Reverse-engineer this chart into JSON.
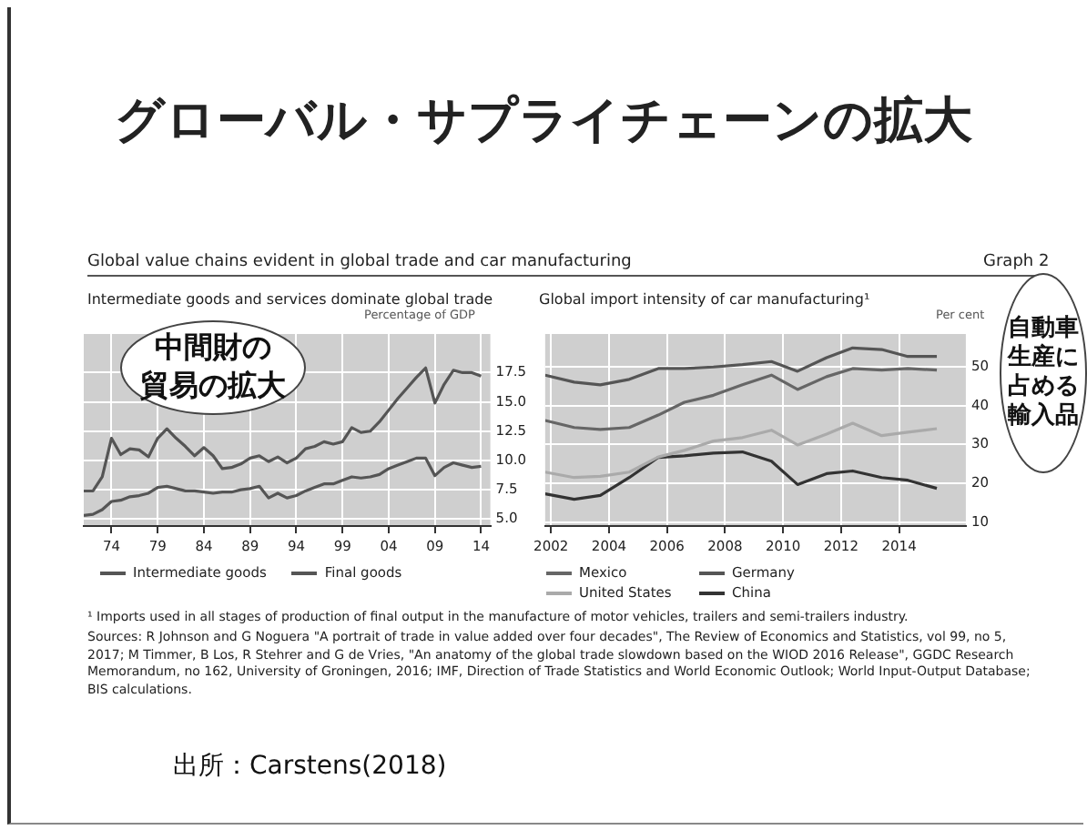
{
  "chart_data": [
    {
      "type": "line",
      "title": "Intermediate goods and services dominate global trade",
      "ylabel": "Percentage of GDP",
      "annotations": [
        "グローバル・サプライチェーンの拡大",
        "Global value chains evident in global trade and car manufacturing",
        "Graph 2",
        "中間財の",
        "貿易の拡大"
      ],
      "x": [
        1971,
        1972,
        1973,
        1974,
        1975,
        1976,
        1977,
        1978,
        1979,
        1980,
        1981,
        1982,
        1983,
        1984,
        1985,
        1986,
        1987,
        1988,
        1989,
        1990,
        1991,
        1992,
        1993,
        1994,
        1995,
        1996,
        1997,
        1998,
        1999,
        2000,
        2001,
        2002,
        2003,
        2004,
        2005,
        2006,
        2007,
        2008,
        2009,
        2010,
        2011,
        2012,
        2013,
        2014
      ],
      "series": [
        {
          "name": "Intermediate goods",
          "color": "#555555",
          "values": [
            7.4,
            7.4,
            8.6,
            11.9,
            10.5,
            11.0,
            10.9,
            10.3,
            11.9,
            12.7,
            11.9,
            11.2,
            10.4,
            11.1,
            10.4,
            9.3,
            9.4,
            9.7,
            10.2,
            10.4,
            9.9,
            10.3,
            9.8,
            10.2,
            11.0,
            11.2,
            11.6,
            11.4,
            11.6,
            12.8,
            12.4,
            12.5,
            13.3,
            14.3,
            15.3,
            16.2,
            17.1,
            17.9,
            14.9,
            16.5,
            17.7,
            17.5,
            17.5,
            17.2
          ]
        },
        {
          "name": "Final goods",
          "color": "#555555",
          "values": [
            5.3,
            5.4,
            5.8,
            6.5,
            6.6,
            6.9,
            7.0,
            7.2,
            7.7,
            7.8,
            7.6,
            7.4,
            7.4,
            7.3,
            7.2,
            7.3,
            7.3,
            7.5,
            7.6,
            7.8,
            6.8,
            7.2,
            6.8,
            7.0,
            7.4,
            7.7,
            8.0,
            8.0,
            8.3,
            8.6,
            8.5,
            8.6,
            8.8,
            9.3,
            9.6,
            9.9,
            10.2,
            10.2,
            8.7,
            9.4,
            9.8,
            9.6,
            9.4,
            9.5
          ]
        }
      ],
      "xlim": [
        1971,
        2015
      ],
      "xticks": [
        {
          "value": 1974,
          "label": "74"
        },
        {
          "value": 1979,
          "label": "79"
        },
        {
          "value": 1984,
          "label": "84"
        },
        {
          "value": 1989,
          "label": "89"
        },
        {
          "value": 1994,
          "label": "94"
        },
        {
          "value": 1999,
          "label": "99"
        },
        {
          "value": 2004,
          "label": "04"
        },
        {
          "value": 2009,
          "label": "09"
        },
        {
          "value": 2014,
          "label": "14"
        }
      ],
      "ylim": [
        4.4,
        20.8
      ],
      "yticks": [
        {
          "value": 5,
          "label": "5.0"
        },
        7.5,
        {
          "value": 10,
          "label": "10.0"
        },
        12.5,
        {
          "value": 15,
          "label": "15.0"
        },
        17.5
      ],
      "grid": true,
      "legend": "bottom",
      "marker": "none",
      "line_style": "solid"
    },
    {
      "type": "line",
      "title": "Global import intensity of car manufacturing¹",
      "ylabel": "Per cent",
      "annotations": [
        "自動車生産に占める輸入品",
        "¹ Imports used in all stages of production of final output in the manufacture of motor vehicles, trailers and semi-trailers industry.",
        "Sources: R Johnson and G Noguera \"A portrait of trade in value added over four decades\", The Review of Economics and Statistics, vol 99, no 5, 2017; M Timmer, B Los, R Stehrer and G de Vries, \"An anatomy of the global trade slowdown based on the WIOD 2016 Release\", GGDC Research Memorandum, no 162, University of Groningen, 2016; IMF, Direction of Trade Statistics and World Economic Outlook; World Input-Output Database; BIS calculations.",
        "出所：Carstens(2018)"
      ],
      "x": [
        2001.8,
        2002.8,
        2003.7,
        2004.7,
        2005.7,
        2006.6,
        2007.6,
        2008.6,
        2009.6,
        2010.5,
        2011.5,
        2012.4,
        2013.4,
        2014.3,
        2015.3
      ],
      "series": [
        {
          "name": "Mexico",
          "color": "#666666",
          "values": [
            36.2,
            34.4,
            33.9,
            34.4,
            37.6,
            40.9,
            42.7,
            45.4,
            47.9,
            44.2,
            47.5,
            49.6,
            49.2,
            49.6,
            49.2
          ]
        },
        {
          "name": "Germany",
          "color": "#555555",
          "values": [
            47.9,
            46.1,
            45.4,
            46.8,
            49.6,
            49.6,
            50.0,
            50.6,
            51.4,
            48.9,
            52.4,
            54.9,
            54.5,
            52.7,
            52.7
          ]
        },
        {
          "name": "United States",
          "color": "#aaaaaa",
          "values": [
            22.9,
            21.5,
            21.8,
            22.9,
            26.8,
            28.5,
            30.9,
            31.8,
            33.7,
            29.9,
            32.7,
            35.5,
            32.3,
            33.2,
            34.1
          ]
        },
        {
          "name": "China",
          "color": "#333333",
          "values": [
            17.3,
            15.9,
            16.9,
            21.5,
            26.7,
            27.1,
            27.8,
            28.1,
            25.7,
            19.7,
            22.5,
            23.2,
            21.5,
            20.8,
            18.7
          ]
        }
      ],
      "xlim": [
        2001.8,
        2016.3
      ],
      "xticks": [
        2002,
        2004,
        2006,
        2008,
        2010,
        2012,
        2014
      ],
      "ylim": [
        9,
        58.5
      ],
      "yticks": [
        10,
        20,
        30,
        40,
        50
      ],
      "grid": true,
      "legend": "bottom",
      "marker": "none",
      "line_style": "solid"
    }
  ]
}
